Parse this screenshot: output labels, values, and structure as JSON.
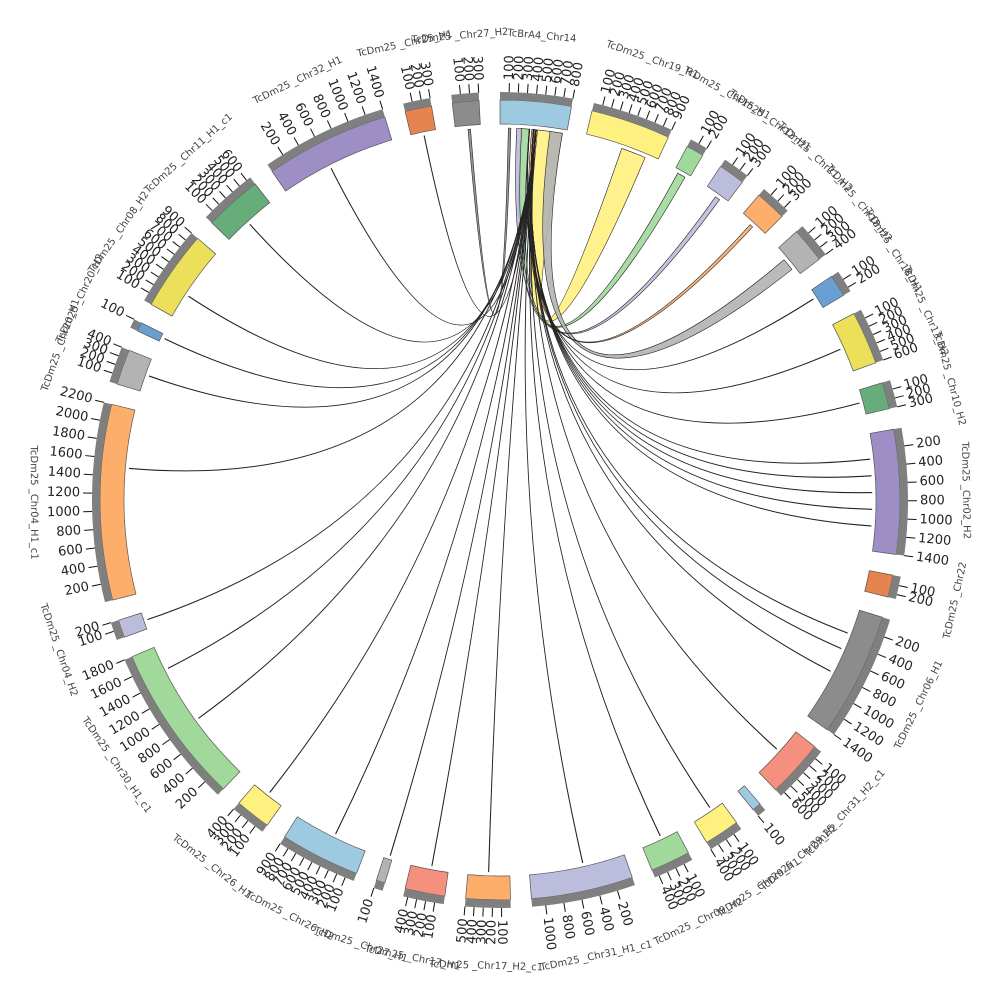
{
  "chart_data": {
    "type": "chord",
    "segments": [
      {
        "name": "TcBrA4_Chr14",
        "color": "#9ecae1",
        "length": 800,
        "ticks": [
          100,
          200,
          300,
          400,
          500,
          600,
          700,
          800
        ]
      },
      {
        "name": "TcDm25 _Chr19_H1",
        "color": "#fff17f",
        "length": 900,
        "ticks": [
          100,
          200,
          300,
          400,
          500,
          600,
          700,
          800,
          900
        ]
      },
      {
        "name": "TcDm25 _Chr15_H1",
        "color": "#a1d99b",
        "length": 200,
        "ticks": [
          100,
          200
        ]
      },
      {
        "name": "TcDm25 _Chr12_H1",
        "color": "#bcbddc",
        "length": 300,
        "ticks": [
          100,
          200,
          300
        ]
      },
      {
        "name": "TcDm25 _Chr21_H2",
        "color": "#fdae6b",
        "length": 350,
        "ticks": [
          100,
          200,
          300
        ]
      },
      {
        "name": "TcDm25 _Chr18_H2",
        "color": "#b3b3b3",
        "length": 400,
        "ticks": [
          100,
          200,
          300,
          400
        ]
      },
      {
        "name": "TcDm25 _Chr18_H1",
        "color": "#6a9fd4",
        "length": 250,
        "ticks": [
          100,
          200
        ]
      },
      {
        "name": "TcDm25 _Chr13_H2",
        "color": "#ece05a",
        "length": 600,
        "ticks": [
          100,
          200,
          300,
          400,
          500,
          600
        ]
      },
      {
        "name": "TcDm25 _Chr10_H2",
        "color": "#66ad7a",
        "length": 300,
        "ticks": [
          100,
          200,
          300
        ]
      },
      {
        "name": "TcDm25 _Chr02_H2",
        "color": "#9e8ec6",
        "length": 1400,
        "ticks": [
          200,
          400,
          600,
          800,
          1000,
          1200,
          1400
        ]
      },
      {
        "name": "TcDm25 _Chr22",
        "color": "#e6844f",
        "length": 250,
        "ticks": [
          100,
          200
        ]
      },
      {
        "name": "TcDm25 _Chr06_H1",
        "color": "#8c8c8c",
        "length": 1400,
        "ticks": [
          200,
          400,
          600,
          800,
          1000,
          1200,
          1400
        ]
      },
      {
        "name": "TcDm25 _Chr31_H2_c1",
        "color": "#f4907d",
        "length": 650,
        "ticks": [
          100,
          200,
          300,
          400,
          500,
          600
        ]
      },
      {
        "name": "TcDm25 _Chr29_H2",
        "color": "#9ecae1",
        "length": 100,
        "ticks": [
          100
        ]
      },
      {
        "name": "TcDm25 _Chr29_H1",
        "color": "#fff17f",
        "length": 400,
        "ticks": [
          100,
          200,
          300,
          400
        ]
      },
      {
        "name": "TcDm25 _Chr09_H2",
        "color": "#a1d99b",
        "length": 450,
        "ticks": [
          100,
          200,
          300,
          400
        ]
      },
      {
        "name": "TcDm25 _Chr31_H1_c1",
        "color": "#bcbddc",
        "length": 1150,
        "ticks": [
          200,
          400,
          600,
          800,
          1000
        ]
      },
      {
        "name": "TcDm25 _Chr17_H2_c1",
        "color": "#fdae6b",
        "length": 500,
        "ticks": [
          100,
          200,
          300,
          400,
          500
        ]
      },
      {
        "name": "TcDm25 _Chr17_H1",
        "color": "#f4907d",
        "length": 450,
        "ticks": [
          100,
          200,
          300,
          400
        ]
      },
      {
        "name": "TcDm25 _Chr27_H1",
        "color": "#b3b3b3",
        "length": 100,
        "ticks": [
          100
        ]
      },
      {
        "name": "TcDm25 _Chr26_H2",
        "color": "#9ecae1",
        "length": 900,
        "ticks": [
          100,
          200,
          300,
          400,
          500,
          600,
          700,
          800,
          900
        ]
      },
      {
        "name": "TcDm25 _Chr26_H1",
        "color": "#fff17f",
        "length": 400,
        "ticks": [
          100,
          200,
          300,
          400
        ]
      },
      {
        "name": "TcDm25 _Chr30_H1_c1",
        "color": "#a1d99b",
        "length": 1800,
        "ticks": [
          200,
          400,
          600,
          800,
          1000,
          1200,
          1400,
          1600,
          1800
        ]
      },
      {
        "name": "TcDm25 _Chr04_H2",
        "color": "#bcbddc",
        "length": 200,
        "ticks": [
          100,
          200
        ]
      },
      {
        "name": "TcDm25 _Chr04_H1_c1",
        "color": "#fdae6b",
        "length": 2200,
        "ticks": [
          200,
          400,
          600,
          800,
          1000,
          1200,
          1400,
          1600,
          1800,
          2000,
          2200
        ]
      },
      {
        "name": "TcDm25 _Chr20_H1",
        "color": "#b3b3b3",
        "length": 400,
        "ticks": [
          100,
          200,
          300,
          400
        ]
      },
      {
        "name": "TcDm25 _Chr20_H2",
        "color": "#6a9fd4",
        "length": 100,
        "ticks": [
          100
        ]
      },
      {
        "name": "TcDm25 _Chr08_H2",
        "color": "#ece05a",
        "length": 900,
        "ticks": [
          100,
          200,
          300,
          400,
          500,
          600,
          700,
          800,
          900
        ]
      },
      {
        "name": "TcDm25 _Chr11_H1_c1",
        "color": "#66ad7a",
        "length": 650,
        "ticks": [
          100,
          200,
          300,
          400,
          500,
          600
        ]
      },
      {
        "name": "TcDm25 _Chr32_H1",
        "color": "#9e8ec6",
        "length": 1400,
        "ticks": [
          200,
          400,
          600,
          800,
          1000,
          1200,
          1400
        ]
      },
      {
        "name": "TcDm25 _Chr25_H1",
        "color": "#e6844f",
        "length": 300,
        "ticks": [
          100,
          200,
          300
        ]
      },
      {
        "name": "TcDm25 _Chr27_H2",
        "color": "#8c8c8c",
        "length": 300,
        "ticks": [
          100,
          200,
          300
        ]
      }
    ],
    "links": [
      {
        "source": [
          0,
          450
        ],
        "target": [
          1,
          450
        ],
        "width": 300
      },
      {
        "source": [
          0,
          250
        ],
        "target": [
          2,
          50
        ],
        "width": 100
      },
      {
        "source": [
          0,
          600
        ],
        "target": [
          5,
          150
        ],
        "width": 150
      },
      {
        "source": [
          0,
          200
        ],
        "target": [
          3,
          150
        ],
        "width": 60
      },
      {
        "source": [
          0,
          380
        ],
        "target": [
          4,
          150
        ],
        "width": 40
      },
      {
        "source": [
          0,
          100
        ],
        "target": [
          31,
          150
        ],
        "width": 30
      },
      {
        "source": [
          0,
          400
        ],
        "target": [
          9,
          300
        ],
        "width": 6
      },
      {
        "source": [
          0,
          400
        ],
        "target": [
          9,
          500
        ],
        "width": 6
      },
      {
        "source": [
          0,
          400
        ],
        "target": [
          9,
          700
        ],
        "width": 6
      },
      {
        "source": [
          0,
          400
        ],
        "target": [
          9,
          900
        ],
        "width": 6
      },
      {
        "source": [
          0,
          400
        ],
        "target": [
          9,
          1100
        ],
        "width": 6
      },
      {
        "source": [
          0,
          400
        ],
        "target": [
          11,
          300
        ],
        "width": 6
      },
      {
        "source": [
          0,
          400
        ],
        "target": [
          11,
          500
        ],
        "width": 6
      },
      {
        "source": [
          0,
          400
        ],
        "target": [
          11,
          800
        ],
        "width": 6
      },
      {
        "source": [
          0,
          350
        ],
        "target": [
          7,
          300
        ],
        "width": 6
      },
      {
        "source": [
          0,
          350
        ],
        "target": [
          6,
          100
        ],
        "width": 6
      },
      {
        "source": [
          0,
          350
        ],
        "target": [
          8,
          150
        ],
        "width": 6
      },
      {
        "source": [
          0,
          430
        ],
        "target": [
          12,
          300
        ],
        "width": 6
      },
      {
        "source": [
          0,
          430
        ],
        "target": [
          14,
          150
        ],
        "width": 6
      },
      {
        "source": [
          0,
          430
        ],
        "target": [
          15,
          200
        ],
        "width": 6
      },
      {
        "source": [
          0,
          430
        ],
        "target": [
          16,
          500
        ],
        "width": 6
      },
      {
        "source": [
          0,
          430
        ],
        "target": [
          17,
          250
        ],
        "width": 6
      },
      {
        "source": [
          0,
          430
        ],
        "target": [
          18,
          200
        ],
        "width": 6
      },
      {
        "source": [
          0,
          430
        ],
        "target": [
          19,
          30
        ],
        "width": 6
      },
      {
        "source": [
          0,
          430
        ],
        "target": [
          20,
          400
        ],
        "width": 6
      },
      {
        "source": [
          0,
          430
        ],
        "target": [
          21,
          200
        ],
        "width": 6
      },
      {
        "source": [
          0,
          430
        ],
        "target": [
          22,
          800
        ],
        "width": 6
      },
      {
        "source": [
          0,
          430
        ],
        "target": [
          22,
          1500
        ],
        "width": 6
      },
      {
        "source": [
          0,
          430
        ],
        "target": [
          23,
          100
        ],
        "width": 6
      },
      {
        "source": [
          0,
          430
        ],
        "target": [
          24,
          1500
        ],
        "width": 6
      },
      {
        "source": [
          0,
          430
        ],
        "target": [
          25,
          200
        ],
        "width": 6
      },
      {
        "source": [
          0,
          430
        ],
        "target": [
          26,
          50
        ],
        "width": 6
      },
      {
        "source": [
          0,
          430
        ],
        "target": [
          27,
          300
        ],
        "width": 6
      },
      {
        "source": [
          0,
          430
        ],
        "target": [
          28,
          300
        ],
        "width": 6
      },
      {
        "source": [
          0,
          430
        ],
        "target": [
          29,
          600
        ],
        "width": 6
      },
      {
        "source": [
          0,
          430
        ],
        "target": [
          30,
          150
        ],
        "width": 6
      }
    ]
  }
}
